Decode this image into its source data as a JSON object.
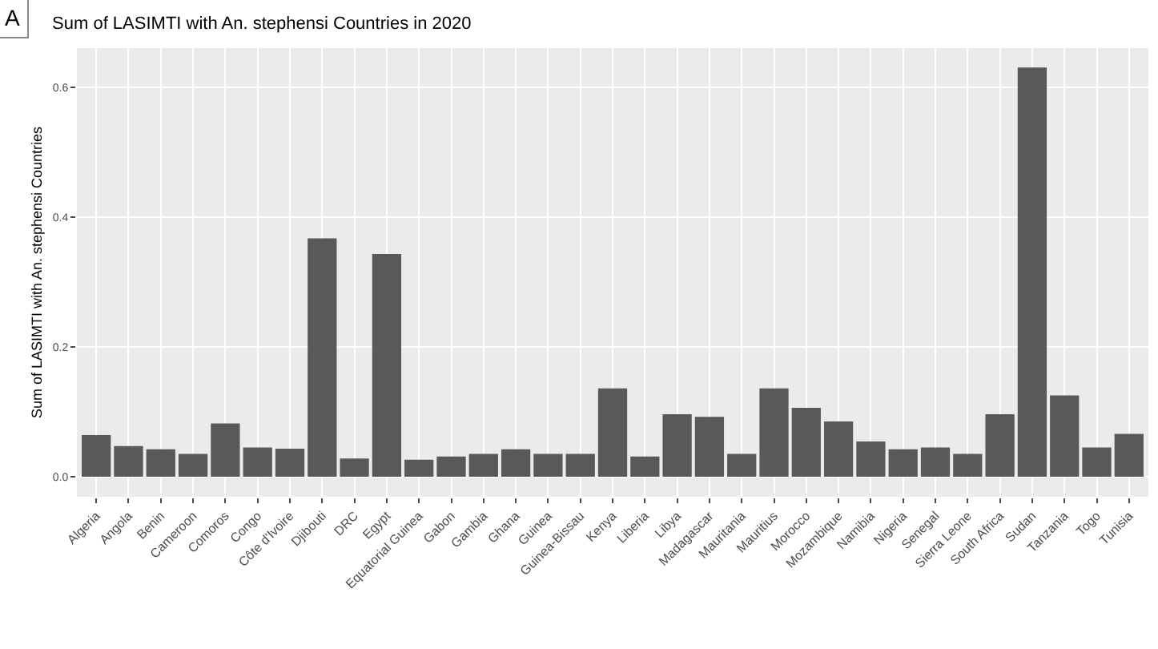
{
  "chart_data": {
    "type": "bar",
    "title": "Sum of LASIMTI with An. stephensi Countries in 2020",
    "ylabel": "Sum of LASIMTI with An. stephensi Countries",
    "annotations": [
      "A"
    ],
    "categories": [
      "Algeria",
      "Angola",
      "Benin",
      "Cameroon",
      "Comoros",
      "Congo",
      "Côte d'Ivoire",
      "Djibouti",
      "DRC",
      "Egypt",
      "Equatorial Guinea",
      "Gabon",
      "Gambia",
      "Ghana",
      "Guinea",
      "Guinea-Bissau",
      "Kenya",
      "Liberia",
      "Libya",
      "Madagascar",
      "Mauritania",
      "Mauritius",
      "Morocco",
      "Mozambique",
      "Namibia",
      "Nigeria",
      "Senegal",
      "Sierra Leone",
      "South Africa",
      "Sudan",
      "Tanzania",
      "Togo",
      "Tunisia"
    ],
    "values": [
      0.064,
      0.047,
      0.042,
      0.035,
      0.082,
      0.045,
      0.043,
      0.367,
      0.028,
      0.343,
      0.026,
      0.031,
      0.035,
      0.042,
      0.035,
      0.035,
      0.136,
      0.031,
      0.096,
      0.092,
      0.035,
      0.136,
      0.106,
      0.085,
      0.054,
      0.042,
      0.045,
      0.035,
      0.096,
      0.63,
      0.125,
      0.045,
      0.066
    ],
    "color": "#595959",
    "ylim": [
      -0.031,
      0.66
    ],
    "yticks": [
      {
        "value": 0,
        "label": "0.0"
      },
      0.2,
      0.4,
      0.6
    ],
    "grid": true
  }
}
